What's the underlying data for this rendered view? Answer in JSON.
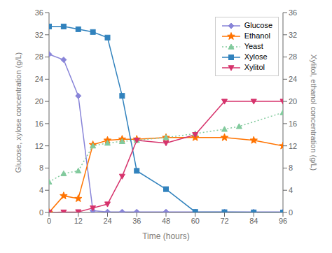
{
  "chart_data": {
    "type": "line",
    "xlabel": "Time (hours)",
    "ylabel": "Glucose, xylose concentration (g/L)",
    "y2label": "Xylitol, ethanol concentration (g/L)",
    "xlim": [
      0,
      96
    ],
    "xticks": [
      0,
      12,
      24,
      36,
      48,
      60,
      72,
      84,
      96
    ],
    "ylim": [
      0,
      36
    ],
    "yticks": [
      0,
      4,
      8,
      12,
      16,
      20,
      24,
      28,
      32,
      36
    ],
    "y2lim": [
      0,
      36
    ],
    "y2ticks": [
      0,
      4,
      8,
      12,
      16,
      20,
      24,
      28,
      32,
      36
    ],
    "grid": false,
    "legend": "upper right",
    "series": [
      {
        "name": "Glucose",
        "x": [
          0,
          6,
          12,
          18,
          24,
          30,
          36,
          48,
          60,
          72,
          84,
          96
        ],
        "values": [
          28.5,
          27.5,
          21.0,
          0.3,
          0.1,
          0.1,
          0.1,
          0.1,
          0.1,
          0.1,
          0.1,
          0.1
        ],
        "marker": "diamond",
        "line_style": "solid"
      },
      {
        "name": "Ethanol",
        "x": [
          0,
          6,
          12,
          18,
          24,
          30,
          36,
          48,
          60,
          72,
          84,
          96
        ],
        "values": [
          0.0,
          3.0,
          2.5,
          12.2,
          13.0,
          13.2,
          13.2,
          13.5,
          13.5,
          13.5,
          13.0,
          12.0
        ],
        "axis": "y2",
        "marker": "star",
        "line_style": "solid"
      },
      {
        "name": "Yeast",
        "x": [
          0,
          6,
          12,
          18,
          24,
          30,
          36,
          48,
          60,
          72,
          78,
          96
        ],
        "values": [
          5.5,
          7.0,
          7.5,
          12.0,
          12.5,
          12.8,
          13.0,
          13.5,
          14.2,
          15.0,
          15.5,
          18.0
        ],
        "axis": "y2",
        "marker": "triangle",
        "line_style": "dotted"
      },
      {
        "name": "Xylose",
        "x": [
          0,
          6,
          12,
          18,
          24,
          30,
          36,
          48,
          60,
          72,
          84,
          96
        ],
        "values": [
          33.5,
          33.5,
          33.0,
          32.5,
          31.5,
          21.0,
          7.5,
          4.2,
          0.1,
          0.05,
          0.02,
          0.0
        ],
        "marker": "square",
        "line_style": "solid"
      },
      {
        "name": "Xylitol",
        "x": [
          0,
          6,
          12,
          18,
          24,
          30,
          36,
          48,
          60,
          72,
          84,
          96
        ],
        "values": [
          0.0,
          0.05,
          0.1,
          0.8,
          1.5,
          6.5,
          13.0,
          12.5,
          14.0,
          20.0,
          20.0,
          20.0
        ],
        "axis": "y2",
        "marker": "triangle-down",
        "line_style": "solid"
      }
    ]
  }
}
